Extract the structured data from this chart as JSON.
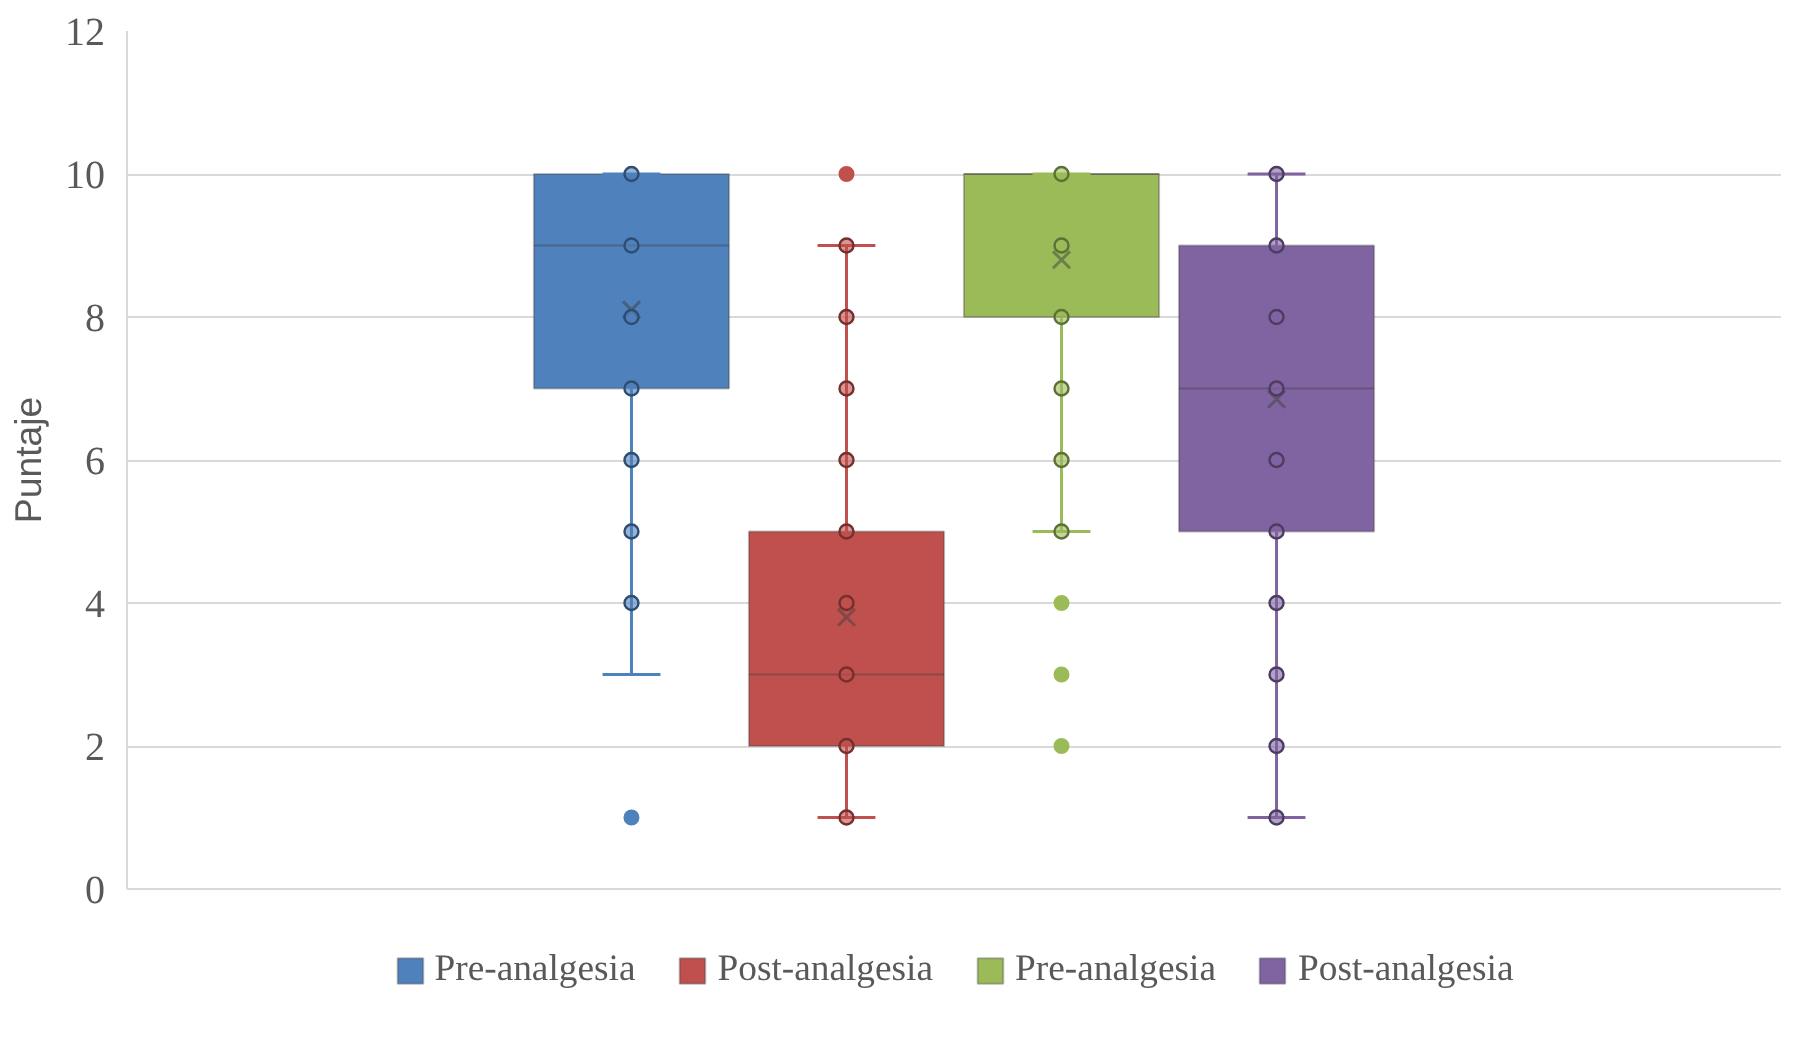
{
  "chart_data": {
    "type": "box",
    "ylabel": "Puntaje",
    "categories": [
      null
    ],
    "ylim": [
      0,
      12
    ],
    "yticks": [
      0,
      2,
      4,
      6,
      8,
      10,
      12
    ],
    "grid": "y",
    "legend": "bottom",
    "marker": "circle",
    "series": [
      {
        "name": "Pre-analgesia",
        "color": "#4f81bd",
        "boxes": [
          {
            "low": 3,
            "q1": 7,
            "median": 9,
            "q3": 10,
            "high": 10,
            "mean": 8.1,
            "outliers": [
              1
            ]
          }
        ]
      },
      {
        "name": "Post-analgesia",
        "color": "#c0504d",
        "boxes": [
          {
            "low": 1,
            "q1": 2,
            "median": 3,
            "q3": 5,
            "high": 9,
            "mean": 3.8,
            "outliers": [
              10
            ]
          }
        ]
      },
      {
        "name": "Pre-analgesia",
        "color": "#9bbb59",
        "boxes": [
          {
            "low": 5,
            "q1": 8,
            "median": 10,
            "q3": 10,
            "high": 10,
            "mean": 8.8,
            "outliers": [
              2,
              3,
              4
            ]
          }
        ]
      },
      {
        "name": "Post-analgesia",
        "color": "#8064a2",
        "boxes": [
          {
            "low": 1,
            "q1": 5,
            "median": 7,
            "q3": 9,
            "high": 10,
            "mean": 6.85
          }
        ]
      },
      {
        "type": "scatter",
        "color": "#4f81bd",
        "x": [
          null,
          null,
          null,
          null,
          null,
          null,
          null
        ],
        "values": [
          4,
          5,
          6,
          7,
          8,
          9,
          10
        ]
      },
      {
        "type": "scatter",
        "color": "#c0504d",
        "x": [
          null,
          null,
          null,
          null,
          null,
          null,
          null,
          null,
          null
        ],
        "values": [
          1,
          2,
          3,
          4,
          5,
          6,
          7,
          8,
          9
        ]
      },
      {
        "type": "scatter",
        "color": "#9bbb59",
        "x": [
          null,
          null,
          null,
          null,
          null,
          null
        ],
        "values": [
          5,
          6,
          7,
          8,
          9,
          10
        ]
      },
      {
        "type": "scatter",
        "color": "#8064a2",
        "x": [
          null,
          null,
          null,
          null,
          null,
          null,
          null,
          null,
          null,
          null
        ],
        "values": [
          1,
          2,
          3,
          4,
          5,
          6,
          7,
          8,
          9,
          10
        ]
      }
    ]
  }
}
